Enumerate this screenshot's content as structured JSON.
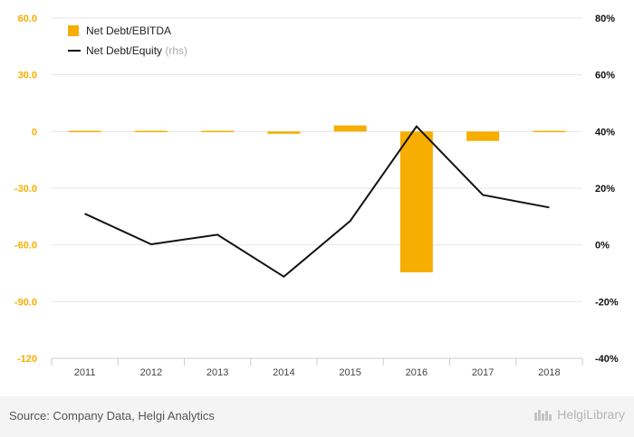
{
  "chart_data": {
    "type": "bar",
    "categories": [
      "2011",
      "2012",
      "2013",
      "2014",
      "2015",
      "2016",
      "2017",
      "2018"
    ],
    "series": [
      {
        "name": "Net Debt/EBITDA",
        "type": "bar",
        "axis": "left",
        "color": "#f7ae00",
        "values": [
          0.3,
          0.0,
          0.3,
          -1.2,
          3.2,
          -74.5,
          -5.0,
          0.6
        ]
      },
      {
        "name": "Net Debt/Equity",
        "suffix": "(rhs)",
        "type": "line",
        "axis": "right",
        "color": "#111111",
        "values": [
          11.0,
          0.2,
          3.6,
          -11.2,
          8.4,
          41.8,
          17.6,
          13.2
        ]
      }
    ],
    "y_left": {
      "ticks": [
        "60.0",
        "30.0",
        "0",
        "-30.0",
        "-60.0",
        "-90.0",
        "-120"
      ],
      "ylim": [
        -120,
        60
      ],
      "color": "#f7ae00"
    },
    "y_right": {
      "ticks": [
        "80%",
        "60%",
        "40%",
        "20%",
        "0%",
        "-20%",
        "-40%"
      ],
      "ylim": [
        -40,
        80
      ],
      "color": "#111111"
    },
    "grid": true,
    "legend": "top-left"
  },
  "footer": {
    "source": "Source: Company Data, Helgi Analytics",
    "brand": "HelgiLibrary"
  }
}
